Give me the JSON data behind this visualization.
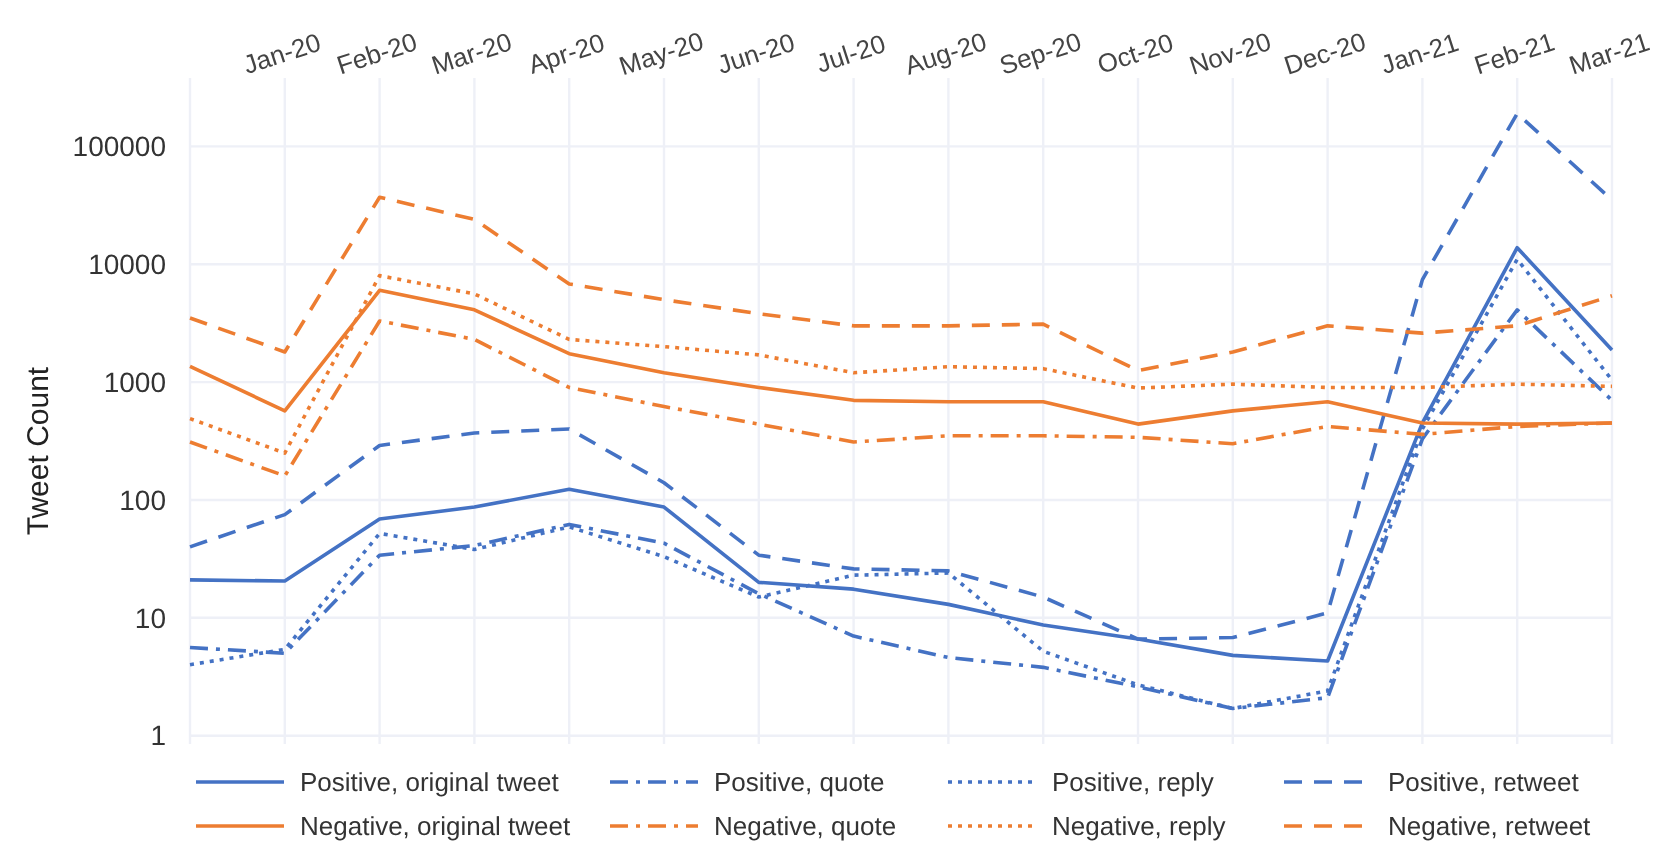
{
  "chart_data": {
    "type": "line",
    "ylabel": "Tweet Count",
    "categories": [
      null,
      "Jan-20",
      "Feb-20",
      "Mar-20",
      "Apr-20",
      "May-20",
      "Jun-20",
      "Jul-20",
      "Aug-20",
      "Sep-20",
      "Oct-20",
      "Nov-20",
      "Dec-20",
      "Jan-21",
      "Feb-21",
      "Mar-21"
    ],
    "series": [
      {
        "name": "Positive, original tweet",
        "color": "#4472c4",
        "line_style": "solid",
        "values": [
          21,
          20.5,
          69,
          87,
          123,
          87,
          20,
          17.5,
          13,
          8.7,
          6.6,
          4.8,
          4.3,
          450,
          13800,
          1870
        ]
      },
      {
        "name": "Positive, quote",
        "color": "#4472c4",
        "line_style": "dashdot",
        "values": [
          5.6,
          5,
          34,
          41,
          62,
          43,
          16,
          7,
          4.6,
          3.8,
          2.6,
          1.7,
          2.1,
          330,
          4100,
          700
        ]
      },
      {
        "name": "Positive, reply",
        "color": "#4472c4",
        "line_style": "dotted",
        "values": [
          4,
          5.4,
          52,
          38,
          59,
          33,
          15,
          23,
          24,
          5.2,
          2.7,
          1.7,
          2.4,
          400,
          11000,
          1040
        ]
      },
      {
        "name": "Positive, retweet",
        "color": "#4472c4",
        "line_style": "dashed",
        "values": [
          40,
          75,
          290,
          370,
          400,
          140,
          34,
          26,
          25,
          15,
          6.6,
          6.8,
          11,
          7400,
          190000,
          35000
        ]
      },
      {
        "name": "Negative, original tweet",
        "color": "#ed7d31",
        "line_style": "solid",
        "values": [
          1360,
          570,
          6000,
          4100,
          1740,
          1200,
          900,
          700,
          680,
          680,
          440,
          570,
          680,
          450,
          440,
          450
        ]
      },
      {
        "name": "Negative, quote",
        "color": "#ed7d31",
        "line_style": "dashdot",
        "values": [
          310,
          160,
          3300,
          2300,
          900,
          620,
          440,
          310,
          350,
          350,
          340,
          300,
          420,
          360,
          420,
          450
        ]
      },
      {
        "name": "Negative, reply",
        "color": "#ed7d31",
        "line_style": "dotted",
        "values": [
          490,
          250,
          8000,
          5600,
          2300,
          2000,
          1700,
          1200,
          1350,
          1300,
          890,
          960,
          900,
          900,
          960,
          920
        ]
      },
      {
        "name": "Negative, retweet",
        "color": "#ed7d31",
        "line_style": "dashed",
        "values": [
          3500,
          1800,
          37000,
          24000,
          6800,
          5000,
          3800,
          3000,
          3000,
          3100,
          1250,
          1800,
          3000,
          2600,
          3000,
          5400
        ]
      }
    ],
    "log": true,
    "ylim": [
      0.85,
      380000
    ],
    "yticks": [
      1,
      10,
      100,
      1000,
      10000,
      100000
    ],
    "grid": true,
    "legend": "bottom"
  }
}
